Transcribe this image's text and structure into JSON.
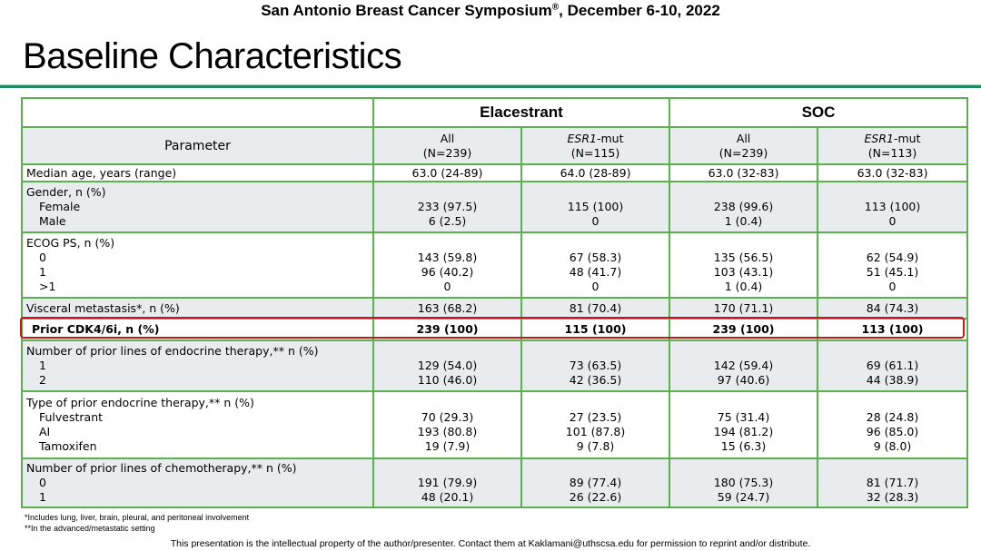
{
  "conference": {
    "name": "San Antonio Breast Cancer Symposium",
    "reg": "®",
    "dates": ", December 6-10, 2022"
  },
  "title": "Baseline Characteristics",
  "table": {
    "param_header": "Parameter",
    "groups": [
      "Elacestrant",
      "SOC"
    ],
    "subheaders": [
      {
        "name": "All",
        "italic": false,
        "suffix": "",
        "n": "(N=239)"
      },
      {
        "name": "ESR1",
        "italic": true,
        "suffix": "-mut",
        "n": "(N=115)"
      },
      {
        "name": "All",
        "italic": false,
        "suffix": "",
        "n": "(N=239)"
      },
      {
        "name": "ESR1",
        "italic": true,
        "suffix": "-mut",
        "n": "(N=113)"
      }
    ],
    "rows": [
      {
        "label": [
          "Median age, years (range)"
        ],
        "values": [
          [
            "63.0 (24-89)"
          ],
          [
            "64.0 (28-89)"
          ],
          [
            "63.0 (32-83)"
          ],
          [
            "63.0 (32-83)"
          ]
        ]
      },
      {
        "label": [
          "Gender, n (%)",
          "Female",
          "Male"
        ],
        "values": [
          [
            "233 (97.5)",
            "6 (2.5)"
          ],
          [
            "115 (100)",
            "0"
          ],
          [
            "238 (99.6)",
            "1 (0.4)"
          ],
          [
            "113 (100)",
            "0"
          ]
        ]
      },
      {
        "label": [
          "ECOG PS, n (%)",
          "0",
          "1",
          ">1"
        ],
        "values": [
          [
            "",
            "143 (59.8)",
            "96 (40.2)",
            "0"
          ],
          [
            "",
            "67 (58.3)",
            "48 (41.7)",
            "0"
          ],
          [
            "",
            "135 (56.5)",
            "103 (43.1)",
            "1 (0.4)"
          ],
          [
            "",
            "62 (54.9)",
            "51 (45.1)",
            "0"
          ]
        ]
      },
      {
        "label": [
          "Visceral metastasis*, n (%)"
        ],
        "values": [
          [
            "163 (68.2)"
          ],
          [
            "81 (70.4)"
          ],
          [
            "170 (71.1)"
          ],
          [
            "84 (74.3)"
          ]
        ]
      },
      {
        "label": [
          "Prior CDK4/6i, n (%)"
        ],
        "values": [
          [
            "239 (100)"
          ],
          [
            "115 (100)"
          ],
          [
            "239 (100)"
          ],
          [
            "113 (100)"
          ]
        ],
        "highlight": true
      },
      {
        "label": [
          "Number of prior lines of endocrine therapy,** n (%)",
          "1",
          "2"
        ],
        "values": [
          [
            "",
            "129 (54.0)",
            "110 (46.0)"
          ],
          [
            "",
            "73 (63.5)",
            "42 (36.5)"
          ],
          [
            "",
            "142 (59.4)",
            "97 (40.6)"
          ],
          [
            "",
            "69 (61.1)",
            "44 (38.9)"
          ]
        ]
      },
      {
        "label": [
          "Type of prior endocrine therapy,** n (%)",
          "Fulvestrant",
          "AI",
          "Tamoxifen"
        ],
        "values": [
          [
            "",
            "70 (29.3)",
            "193 (80.8)",
            "19 (7.9)"
          ],
          [
            "",
            "27 (23.5)",
            "101 (87.8)",
            "9 (7.8)"
          ],
          [
            "",
            "75 (31.4)",
            "194 (81.2)",
            "15 (6.3)"
          ],
          [
            "",
            "28 (24.8)",
            "96 (85.0)",
            "9 (8.0)"
          ]
        ]
      },
      {
        "label": [
          "Number of prior lines of chemotherapy,** n (%)",
          "0",
          "1"
        ],
        "values": [
          [
            "",
            "191 (79.9)",
            "48 (20.1)"
          ],
          [
            "",
            "89 (77.4)",
            "26 (22.6)"
          ],
          [
            "",
            "180 (75.3)",
            "59 (24.7)"
          ],
          [
            "",
            "81 (71.7)",
            "32 (28.3)"
          ]
        ]
      }
    ],
    "highlight_color": "#c8141e",
    "border_color": "#5bb04f"
  },
  "footnotes": [
    "*Includes lung, liver, brain, pleural, and peritoneal involvement",
    "**In the advanced/metastatic setting"
  ],
  "copyright": "This presentation is the intellectual property of the author/presenter. Contact them at Kaklamani@uthscsa.edu  for permission to reprint and/or distribute."
}
